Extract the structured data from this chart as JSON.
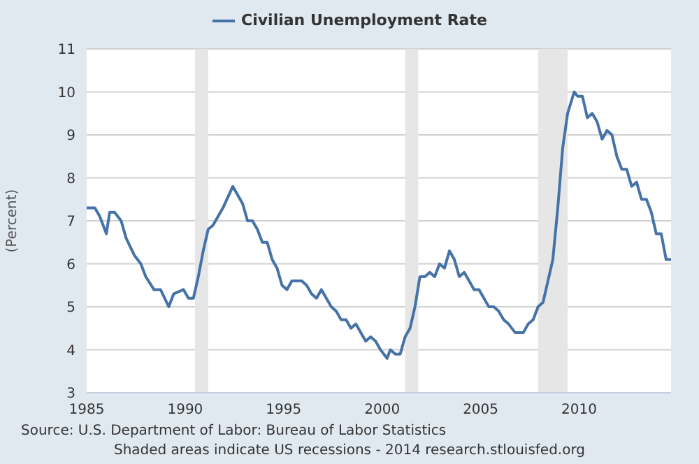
{
  "chart_data": {
    "type": "line",
    "ylabel": "(Percent)",
    "legend": "top",
    "grid": "y",
    "series": [
      {
        "name": "Civilian Unemployment Rate",
        "color": "#4572a7",
        "x": [
          "1985-01",
          "1985-06",
          "1985-09",
          "1986-01",
          "1986-03",
          "1986-06",
          "1986-10",
          "1987-01",
          "1987-06",
          "1987-10",
          "1988-01",
          "1988-06",
          "1988-10",
          "1989-03",
          "1989-06",
          "1989-12",
          "1990-03",
          "1990-06",
          "1990-09",
          "1990-12",
          "1991-03",
          "1991-06",
          "1991-12",
          "1992-06",
          "1992-09",
          "1992-12",
          "1993-03",
          "1993-06",
          "1993-09",
          "1993-12",
          "1994-03",
          "1994-06",
          "1994-09",
          "1994-12",
          "1995-03",
          "1995-06",
          "1995-09",
          "1995-12",
          "1996-03",
          "1996-06",
          "1996-09",
          "1996-12",
          "1997-03",
          "1997-06",
          "1997-09",
          "1997-12",
          "1998-03",
          "1998-06",
          "1998-09",
          "1998-12",
          "1999-03",
          "1999-06",
          "1999-09",
          "1999-12",
          "2000-04",
          "2000-06",
          "2000-09",
          "2000-12",
          "2001-03",
          "2001-06",
          "2001-09",
          "2001-12",
          "2002-03",
          "2002-06",
          "2002-09",
          "2002-12",
          "2003-03",
          "2003-06",
          "2003-09",
          "2003-12",
          "2004-03",
          "2004-06",
          "2004-09",
          "2004-12",
          "2005-03",
          "2005-06",
          "2005-09",
          "2005-12",
          "2006-03",
          "2006-06",
          "2006-10",
          "2006-12",
          "2007-03",
          "2007-06",
          "2007-09",
          "2007-12",
          "2008-03",
          "2008-06",
          "2008-09",
          "2008-12",
          "2009-03",
          "2009-06",
          "2009-10",
          "2009-12",
          "2010-03",
          "2010-06",
          "2010-09",
          "2010-12",
          "2011-03",
          "2011-06",
          "2011-09",
          "2011-12",
          "2012-03",
          "2012-06",
          "2012-09",
          "2012-12",
          "2013-03",
          "2013-06",
          "2013-09",
          "2013-12",
          "2014-03",
          "2014-06",
          "2014-09"
        ],
        "values": [
          7.3,
          7.3,
          7.1,
          6.7,
          7.2,
          7.2,
          7.0,
          6.6,
          6.2,
          6.0,
          5.7,
          5.4,
          5.4,
          5.0,
          5.3,
          5.4,
          5.2,
          5.2,
          5.7,
          6.3,
          6.8,
          6.9,
          7.3,
          7.8,
          7.6,
          7.4,
          7.0,
          7.0,
          6.8,
          6.5,
          6.5,
          6.1,
          5.9,
          5.5,
          5.4,
          5.6,
          5.6,
          5.6,
          5.5,
          5.3,
          5.2,
          5.4,
          5.2,
          5.0,
          4.9,
          4.7,
          4.7,
          4.5,
          4.6,
          4.4,
          4.2,
          4.3,
          4.2,
          4.0,
          3.8,
          4.0,
          3.9,
          3.9,
          4.3,
          4.5,
          5.0,
          5.7,
          5.7,
          5.8,
          5.7,
          6.0,
          5.9,
          6.3,
          6.1,
          5.7,
          5.8,
          5.6,
          5.4,
          5.4,
          5.2,
          5.0,
          5.0,
          4.9,
          4.7,
          4.6,
          4.4,
          4.4,
          4.4,
          4.6,
          4.7,
          5.0,
          5.1,
          5.6,
          6.1,
          7.3,
          8.7,
          9.5,
          10.0,
          9.9,
          9.9,
          9.4,
          9.5,
          9.3,
          8.9,
          9.1,
          9.0,
          8.5,
          8.2,
          8.2,
          7.8,
          7.9,
          7.5,
          7.5,
          7.2,
          6.7,
          6.7,
          6.1,
          6.1
        ]
      }
    ],
    "xlim": [
      "1985-01",
      "2014-09"
    ],
    "xticks": [
      "1985",
      "1990",
      "1995",
      "2000",
      "2005",
      "2010"
    ],
    "ylim": [
      3,
      11
    ],
    "yticks": [
      3,
      4,
      5,
      6,
      7,
      8,
      9,
      10,
      11
    ],
    "bands": [
      {
        "axis": "x",
        "from": "1990-07",
        "to": "1991-03",
        "color": "#e6e6e6"
      },
      {
        "axis": "x",
        "from": "2001-03",
        "to": "2001-11",
        "color": "#e6e6e6"
      },
      {
        "axis": "x",
        "from": "2007-12",
        "to": "2009-06",
        "color": "#e6e6e6"
      }
    ],
    "annotations": [
      "Source: U.S. Department of Labor: Bureau of Labor Statistics",
      "Shaded areas indicate US recessions - 2014 research.stlouisfed.org"
    ]
  }
}
